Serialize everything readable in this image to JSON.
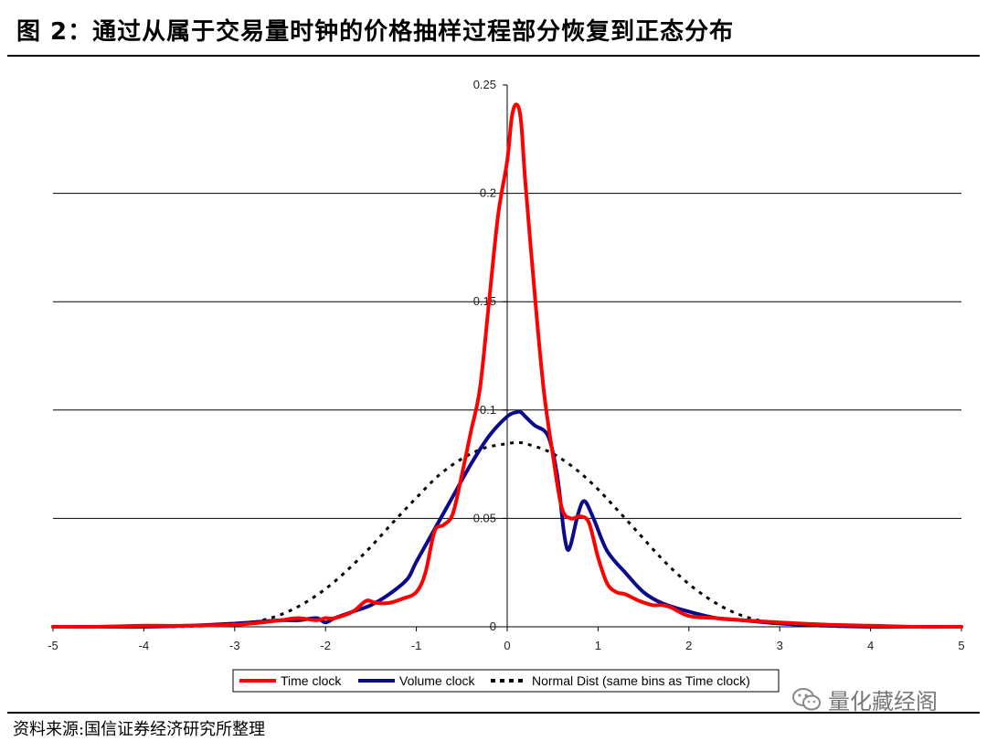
{
  "figure_title": "图 2：通过从属于交易量时钟的价格抽样过程部分恢复到正态分布",
  "source_note": "资料来源:国信证券经济研究所整理",
  "watermark_text": "量化藏经阁",
  "colors": {
    "time_clock": "#ff0000",
    "volume_clock": "#0a0a8c",
    "normal_dist": "#000000",
    "grid": "#000000"
  },
  "chart_data": {
    "type": "line",
    "title": "",
    "xlabel": "",
    "ylabel": "",
    "xlim": [
      -5,
      5
    ],
    "ylim": [
      0,
      0.25
    ],
    "x_ticks": [
      -5,
      -4,
      -3,
      -2,
      -1,
      0,
      1,
      2,
      3,
      4,
      5
    ],
    "y_ticks": [
      0,
      0.05,
      0.1,
      0.15,
      0.2,
      0.25
    ],
    "x_tick_labels": [
      "-5",
      "-4",
      "-3",
      "-2",
      "-1",
      "0",
      "1",
      "2",
      "3",
      "4",
      "5"
    ],
    "y_tick_labels": [
      "0",
      "0.05",
      "0.1",
      "0.15",
      "0.2",
      "0.25"
    ],
    "grid": "horizontal",
    "legend_position": "bottom",
    "series": [
      {
        "name": "Time clock",
        "style": "solid",
        "color_key": "time_clock",
        "x": [
          -5,
          -4.5,
          -4,
          -3.5,
          -3,
          -2.7,
          -2.5,
          -2.3,
          -2.1,
          -2.0,
          -1.9,
          -1.7,
          -1.55,
          -1.45,
          -1.3,
          -1.15,
          -1.0,
          -0.9,
          -0.8,
          -0.7,
          -0.6,
          -0.5,
          -0.4,
          -0.3,
          -0.2,
          -0.1,
          0.0,
          0.05,
          0.1,
          0.15,
          0.2,
          0.3,
          0.4,
          0.5,
          0.6,
          0.7,
          0.8,
          0.9,
          1.0,
          1.1,
          1.2,
          1.3,
          1.45,
          1.6,
          1.7,
          1.8,
          2.0,
          2.3,
          2.6,
          3.0,
          3.5,
          4.0,
          4.5,
          5.0
        ],
        "y": [
          0.0,
          0.0,
          0.0005,
          0.0005,
          0.001,
          0.002,
          0.003,
          0.004,
          0.003,
          0.004,
          0.004,
          0.007,
          0.012,
          0.011,
          0.011,
          0.013,
          0.016,
          0.025,
          0.044,
          0.047,
          0.052,
          0.07,
          0.09,
          0.11,
          0.15,
          0.19,
          0.215,
          0.235,
          0.241,
          0.234,
          0.205,
          0.155,
          0.11,
          0.08,
          0.055,
          0.05,
          0.051,
          0.048,
          0.032,
          0.02,
          0.016,
          0.015,
          0.012,
          0.01,
          0.01,
          0.009,
          0.005,
          0.004,
          0.003,
          0.002,
          0.001,
          0.0005,
          0.0,
          0.0
        ]
      },
      {
        "name": "Volume clock",
        "style": "solid",
        "color_key": "volume_clock",
        "x": [
          -5,
          -4.5,
          -4,
          -3.5,
          -3,
          -2.5,
          -2.3,
          -2.1,
          -2.0,
          -1.9,
          -1.7,
          -1.5,
          -1.3,
          -1.1,
          -1.0,
          -0.8,
          -0.6,
          -0.4,
          -0.2,
          0.0,
          0.1,
          0.15,
          0.2,
          0.3,
          0.45,
          0.55,
          0.62,
          0.66,
          0.7,
          0.78,
          0.85,
          0.95,
          1.1,
          1.3,
          1.5,
          1.7,
          2.0,
          2.3,
          2.6,
          3.0,
          3.5,
          4.0,
          4.5,
          5.0
        ],
        "y": [
          0.0,
          0.0,
          0.0,
          0.0005,
          0.0015,
          0.003,
          0.003,
          0.004,
          0.002,
          0.004,
          0.007,
          0.01,
          0.015,
          0.022,
          0.03,
          0.045,
          0.06,
          0.075,
          0.088,
          0.097,
          0.099,
          0.099,
          0.097,
          0.093,
          0.088,
          0.07,
          0.045,
          0.036,
          0.038,
          0.052,
          0.058,
          0.05,
          0.035,
          0.025,
          0.016,
          0.011,
          0.007,
          0.004,
          0.003,
          0.0015,
          0.0005,
          0.0,
          0.0,
          0.0
        ]
      },
      {
        "name": "Normal Dist (same bins as Time clock)",
        "style": "dotted",
        "color_key": "normal_dist",
        "x": [
          -5,
          -4.5,
          -4,
          -3.5,
          -3,
          -2.75,
          -2.5,
          -2.25,
          -2.0,
          -1.75,
          -1.5,
          -1.25,
          -1.0,
          -0.75,
          -0.5,
          -0.25,
          0.0,
          0.1,
          0.2,
          0.45,
          0.7,
          0.95,
          1.2,
          1.45,
          1.7,
          1.95,
          2.2,
          2.45,
          2.7,
          3.0,
          3.5,
          4.0,
          4.5,
          5.0
        ],
        "y": [
          0.0,
          0.0,
          0.0,
          0.0002,
          0.001,
          0.0025,
          0.0055,
          0.0105,
          0.0175,
          0.0265,
          0.037,
          0.0485,
          0.0595,
          0.07,
          0.0775,
          0.0825,
          0.0845,
          0.085,
          0.0845,
          0.081,
          0.0745,
          0.0655,
          0.0545,
          0.043,
          0.0315,
          0.0215,
          0.0135,
          0.0075,
          0.0037,
          0.0015,
          0.0003,
          0.0,
          0.0,
          0.0
        ]
      }
    ]
  }
}
